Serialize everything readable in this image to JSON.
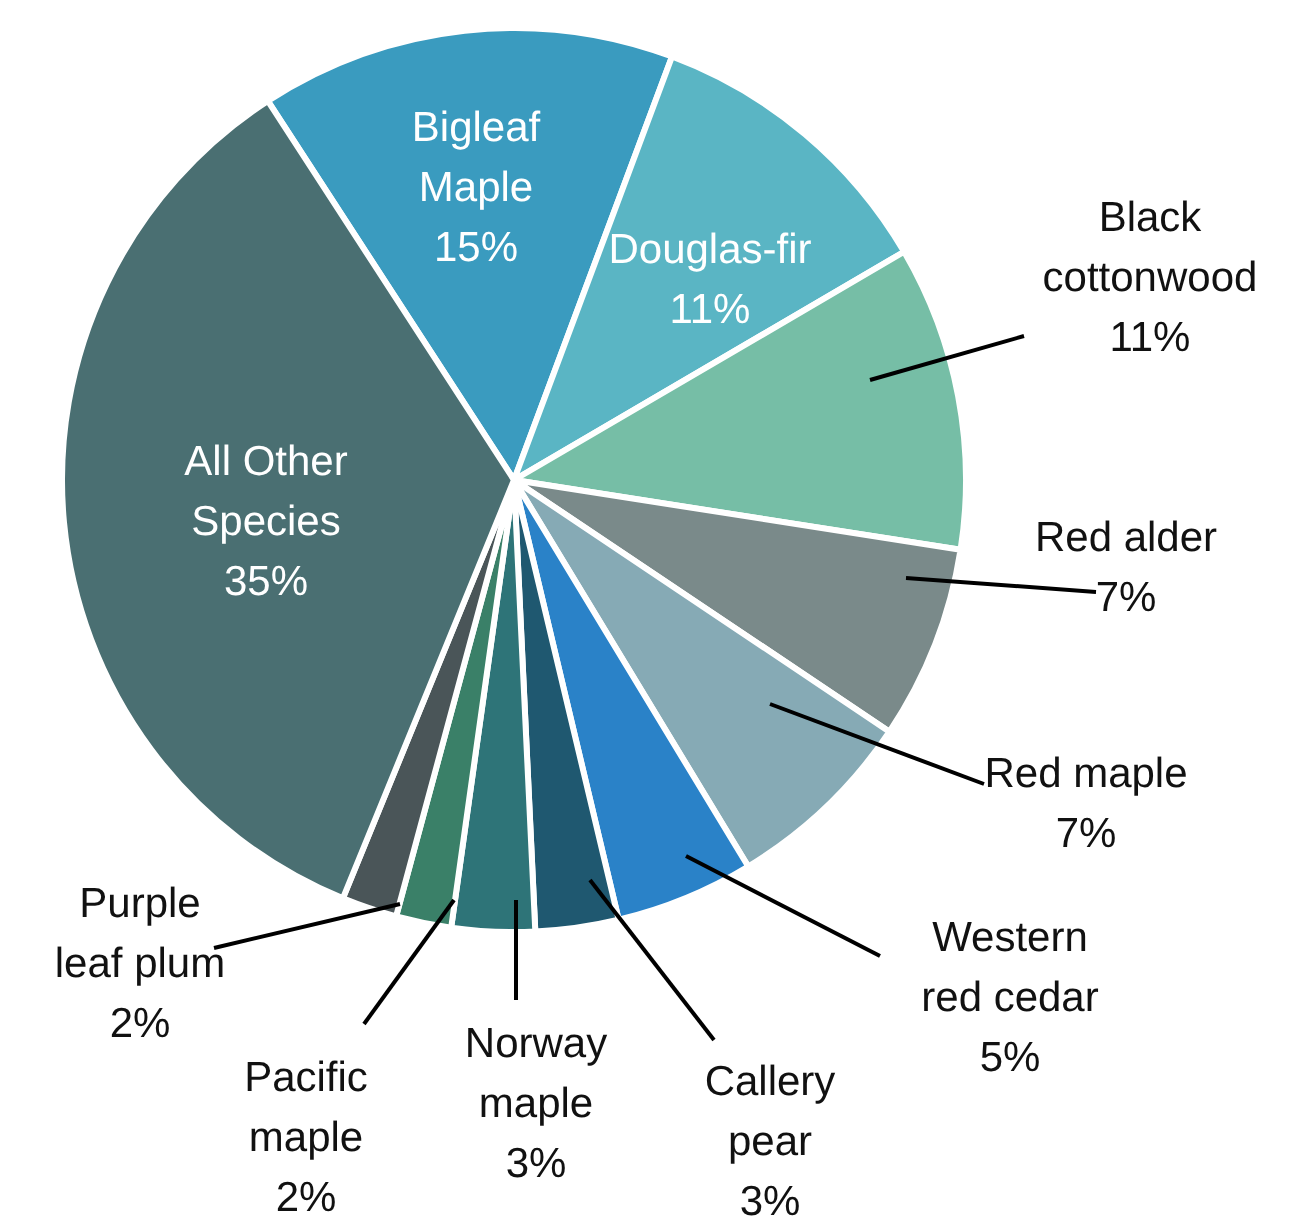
{
  "chart_data": {
    "type": "pie",
    "categories": [
      "Bigleaf Maple",
      "Douglas-fir",
      "Black cottonwood",
      "Red alder",
      "Red maple",
      "Western red cedar",
      "Callery pear",
      "Norway maple",
      "Pacific maple",
      "Purple leaf plum",
      "All Other Species"
    ],
    "values": [
      15,
      11,
      11,
      7,
      7,
      5,
      3,
      3,
      2,
      2,
      35
    ],
    "value_labels": [
      "15%",
      "11%",
      "11%",
      "7%",
      "7%",
      "5%",
      "3%",
      "3%",
      "2%",
      "2%",
      "35%"
    ],
    "colors": [
      "#3a9bbf",
      "#5ab5c4",
      "#76bea6",
      "#7a8a8a",
      "#86aab5",
      "#2a82c8",
      "#1f5870",
      "#2e7478",
      "#3a8068",
      "#4a5558",
      "#4a6f72"
    ]
  }
}
